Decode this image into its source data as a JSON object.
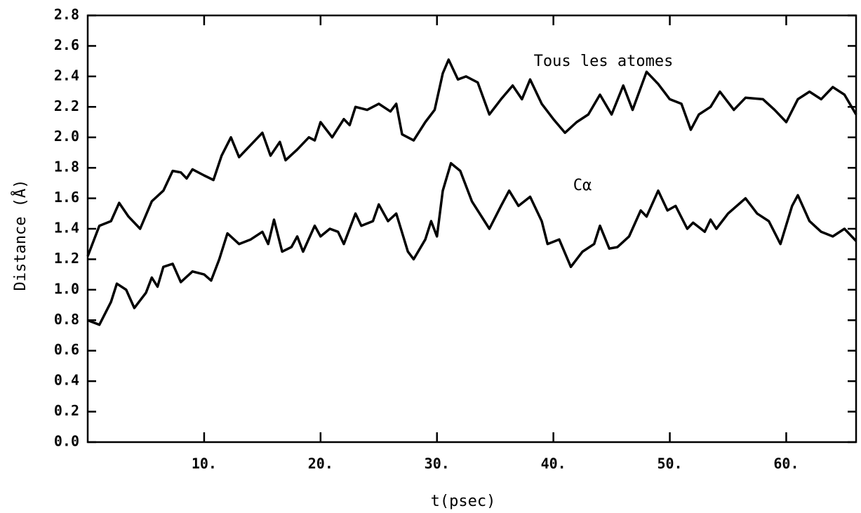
{
  "chart_data": {
    "type": "line",
    "xlabel": "t(psec)",
    "ylabel": "Distance (Å)",
    "xlim": [
      0,
      66
    ],
    "ylim": [
      0,
      2.8
    ],
    "xticks": [
      {
        "value": 10,
        "label": "10."
      },
      {
        "value": 20,
        "label": "20."
      },
      {
        "value": 30,
        "label": "30."
      },
      {
        "value": 40,
        "label": "40."
      },
      {
        "value": 50,
        "label": "50."
      },
      {
        "value": 60,
        "label": "60."
      }
    ],
    "yticks": [
      {
        "value": 0,
        "label": "0.0"
      },
      0.2,
      0.4,
      0.6,
      0.8,
      {
        "value": 1,
        "label": "1.0"
      },
      1.2,
      1.4,
      1.6,
      1.8,
      {
        "value": 2,
        "label": "2.0"
      },
      2.2,
      2.4,
      2.6,
      2.8
    ],
    "series": [
      {
        "name": "Tous les atomes",
        "color": "#000000",
        "x": [
          0,
          1,
          2,
          2.7,
          3.5,
          4.5,
          5.5,
          6.5,
          7.3,
          8,
          8.5,
          9,
          10,
          10.8,
          11.5,
          12.3,
          13,
          14,
          15,
          15.7,
          16.5,
          17,
          18,
          19,
          19.5,
          20,
          21,
          22,
          22.5,
          23,
          24,
          25,
          26,
          26.5,
          27,
          28,
          29,
          29.8,
          30.5,
          31,
          31.8,
          32.5,
          33.5,
          34.5,
          35.5,
          36.5,
          37.3,
          38,
          39,
          40,
          41,
          42,
          43,
          44,
          45,
          46,
          46.8,
          48,
          49,
          50,
          51,
          51.8,
          52.5,
          53.5,
          54.3,
          55.5,
          56.5,
          58,
          59,
          60,
          61,
          62,
          63,
          64,
          65,
          66
        ],
        "values": [
          1.22,
          1.42,
          1.45,
          1.57,
          1.48,
          1.4,
          1.58,
          1.65,
          1.78,
          1.77,
          1.73,
          1.79,
          1.75,
          1.72,
          1.88,
          2.0,
          1.87,
          1.95,
          2.03,
          1.88,
          1.97,
          1.85,
          1.92,
          2.0,
          1.98,
          2.1,
          2.0,
          2.12,
          2.08,
          2.2,
          2.18,
          2.22,
          2.17,
          2.22,
          2.02,
          1.98,
          2.1,
          2.18,
          2.42,
          2.51,
          2.38,
          2.4,
          2.36,
          2.15,
          2.25,
          2.34,
          2.25,
          2.38,
          2.22,
          2.12,
          2.03,
          2.1,
          2.15,
          2.28,
          2.15,
          2.34,
          2.18,
          2.43,
          2.35,
          2.25,
          2.22,
          2.05,
          2.15,
          2.2,
          2.3,
          2.18,
          2.26,
          2.25,
          2.18,
          2.1,
          2.25,
          2.3,
          2.25,
          2.33,
          2.28,
          2.15
        ]
      },
      {
        "name": "Cα",
        "color": "#000000",
        "x": [
          0,
          1,
          2,
          2.5,
          3.3,
          4,
          5,
          5.5,
          6,
          6.5,
          7.3,
          8,
          9,
          10,
          10.6,
          11.3,
          12,
          13,
          14,
          15,
          15.5,
          16,
          16.7,
          17.5,
          18,
          18.5,
          19.5,
          20,
          20.8,
          21.5,
          22,
          23,
          23.5,
          24.5,
          25,
          25.8,
          26.5,
          27.5,
          28,
          29,
          29.5,
          30,
          30.5,
          31.2,
          32,
          33,
          34.5,
          35.5,
          36.2,
          37,
          38,
          39,
          39.5,
          40.5,
          41.5,
          42.5,
          43.5,
          44,
          44.8,
          45.5,
          46.5,
          47.5,
          48,
          49,
          49.8,
          50.5,
          51.5,
          52,
          53,
          53.5,
          54,
          55,
          56.5,
          57.5,
          58.5,
          59.5,
          60.5,
          61,
          62,
          63,
          64,
          65,
          66
        ],
        "values": [
          0.8,
          0.77,
          0.92,
          1.04,
          1.0,
          0.88,
          0.98,
          1.08,
          1.02,
          1.15,
          1.17,
          1.05,
          1.12,
          1.1,
          1.06,
          1.2,
          1.37,
          1.3,
          1.33,
          1.38,
          1.3,
          1.46,
          1.25,
          1.28,
          1.35,
          1.25,
          1.42,
          1.35,
          1.4,
          1.38,
          1.3,
          1.5,
          1.42,
          1.45,
          1.56,
          1.45,
          1.5,
          1.25,
          1.2,
          1.33,
          1.45,
          1.35,
          1.65,
          1.83,
          1.78,
          1.58,
          1.4,
          1.55,
          1.65,
          1.55,
          1.61,
          1.45,
          1.3,
          1.33,
          1.15,
          1.25,
          1.3,
          1.42,
          1.27,
          1.28,
          1.35,
          1.52,
          1.48,
          1.65,
          1.52,
          1.55,
          1.4,
          1.44,
          1.38,
          1.46,
          1.4,
          1.5,
          1.6,
          1.5,
          1.45,
          1.3,
          1.55,
          1.62,
          1.45,
          1.38,
          1.35,
          1.4,
          1.32
        ]
      }
    ]
  }
}
